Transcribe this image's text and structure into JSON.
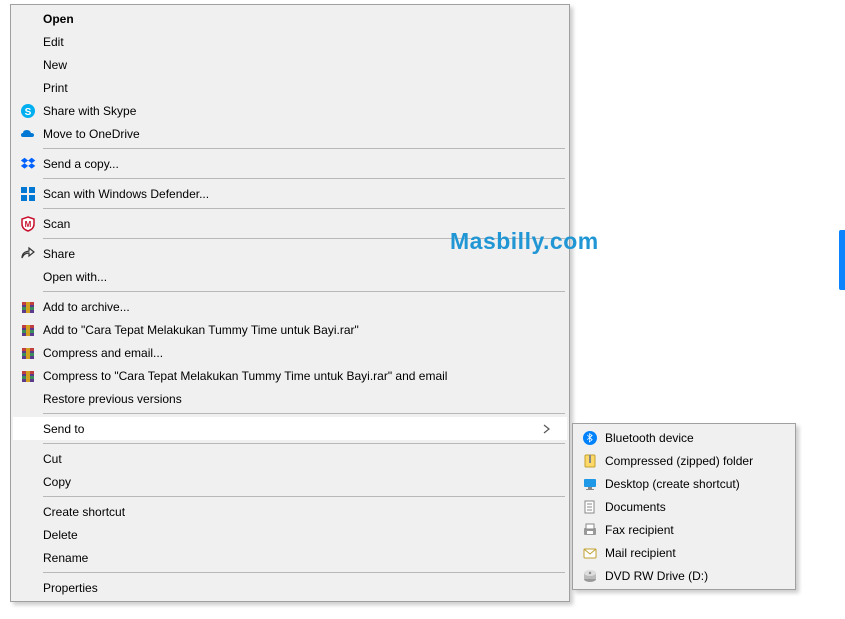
{
  "watermark": "Masbilly.com",
  "watermark_color": "#2196d4",
  "menu_bg": "#f0f0f0",
  "menu_border": "#a0a0a0",
  "hover_bg": "#d8e6f2",
  "main_menu": {
    "items": [
      {
        "label": "Open",
        "icon": "",
        "bold": true
      },
      {
        "label": "Edit",
        "icon": ""
      },
      {
        "label": "New",
        "icon": ""
      },
      {
        "label": "Print",
        "icon": ""
      },
      {
        "label": "Share with Skype",
        "icon": "skype"
      },
      {
        "label": "Move to OneDrive",
        "icon": "onedrive"
      },
      {
        "separator": true
      },
      {
        "label": "Send a copy...",
        "icon": "dropbox"
      },
      {
        "separator": true
      },
      {
        "label": "Scan with Windows Defender...",
        "icon": "defender"
      },
      {
        "separator": true
      },
      {
        "label": "Scan",
        "icon": "mcafee"
      },
      {
        "separator": true
      },
      {
        "label": "Share",
        "icon": "share"
      },
      {
        "label": "Open with...",
        "icon": ""
      },
      {
        "separator": true
      },
      {
        "label": "Add to archive...",
        "icon": "winrar"
      },
      {
        "label": "Add to \"Cara Tepat Melakukan Tummy Time untuk Bayi.rar\"",
        "icon": "winrar"
      },
      {
        "label": "Compress and email...",
        "icon": "winrar"
      },
      {
        "label": "Compress to \"Cara Tepat Melakukan Tummy Time untuk Bayi.rar\" and email",
        "icon": "winrar"
      },
      {
        "label": "Restore previous versions",
        "icon": ""
      },
      {
        "separator": true
      },
      {
        "label": "Send to",
        "icon": "",
        "submenu": true,
        "selected": true
      },
      {
        "separator": true
      },
      {
        "label": "Cut",
        "icon": ""
      },
      {
        "label": "Copy",
        "icon": ""
      },
      {
        "separator": true
      },
      {
        "label": "Create shortcut",
        "icon": ""
      },
      {
        "label": "Delete",
        "icon": ""
      },
      {
        "label": "Rename",
        "icon": ""
      },
      {
        "separator": true
      },
      {
        "label": "Properties",
        "icon": ""
      }
    ]
  },
  "sub_menu": {
    "items": [
      {
        "label": "Bluetooth device",
        "icon": "bluetooth"
      },
      {
        "label": "Compressed (zipped) folder",
        "icon": "zip"
      },
      {
        "label": "Desktop (create shortcut)",
        "icon": "desktop"
      },
      {
        "label": "Documents",
        "icon": "documents"
      },
      {
        "label": "Fax recipient",
        "icon": "fax"
      },
      {
        "label": "Mail recipient",
        "icon": "mail"
      },
      {
        "label": "DVD RW Drive (D:)",
        "icon": "dvd"
      }
    ]
  }
}
